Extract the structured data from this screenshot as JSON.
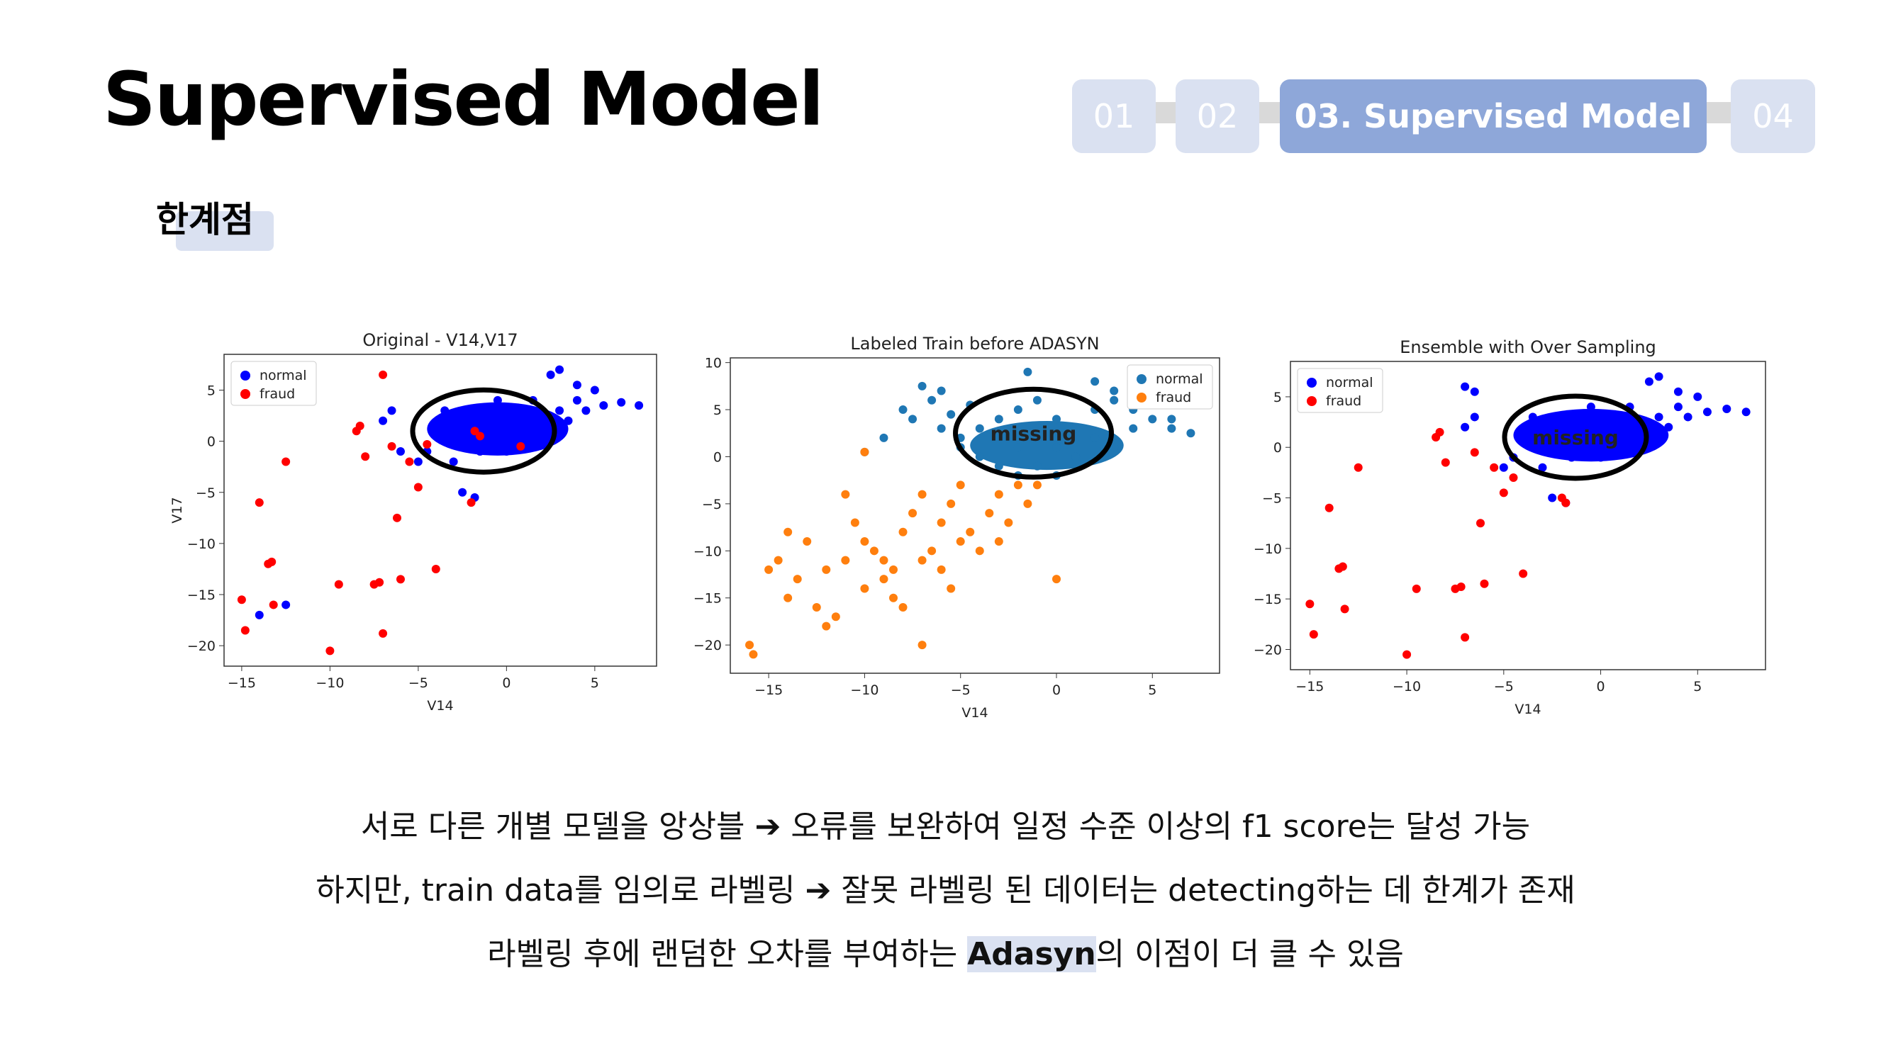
{
  "slide": {
    "title": "Supervised Model",
    "subtitle": "한계점"
  },
  "nav": {
    "items": [
      "01",
      "02",
      "03. Supervised Model",
      "04"
    ],
    "active_index": 2
  },
  "colors": {
    "nav_inactive": "#dae1f1",
    "nav_active": "#8ea7d9",
    "normal_blue": "#0000ff",
    "fraud_red": "#ff0000",
    "mpl_blue": "#1f77b4",
    "mpl_orange": "#ff7f0e"
  },
  "chart_data": [
    {
      "type": "scatter",
      "title": "Original - V14,V17",
      "xlabel": "V14",
      "ylabel": "V17",
      "xlim": [
        -16,
        8.5
      ],
      "ylim": [
        -22,
        8.5
      ],
      "xticks": [
        "−15",
        "−10",
        "−5",
        "0",
        "5"
      ],
      "xtick_values": [
        -15,
        -10,
        -5,
        0,
        5
      ],
      "yticks": [
        "−20",
        "−15",
        "−10",
        "−5",
        "0",
        "5"
      ],
      "ytick_values": [
        -20,
        -15,
        -10,
        -5,
        0,
        5
      ],
      "legend": "top-left",
      "annotation": "",
      "series": [
        {
          "name": "normal",
          "color": "#0000ff",
          "points": [
            [
              -2,
              1
            ],
            [
              -1,
              2
            ],
            [
              0,
              1.5
            ],
            [
              1,
              0
            ],
            [
              2,
              2
            ],
            [
              3,
              3
            ],
            [
              4,
              4
            ],
            [
              -3,
              -2
            ],
            [
              -2.5,
              0.5
            ],
            [
              0.5,
              1
            ],
            [
              1.5,
              -0.5
            ],
            [
              2.5,
              1
            ],
            [
              3.5,
              2
            ],
            [
              4.5,
              3
            ],
            [
              5.5,
              3.5
            ],
            [
              6.5,
              3.8
            ],
            [
              7.5,
              3.5
            ],
            [
              -4,
              1
            ],
            [
              -4.5,
              -1
            ],
            [
              -5,
              -2
            ],
            [
              -7,
              2
            ],
            [
              -6.5,
              3
            ],
            [
              -1.5,
              -1
            ],
            [
              -3.5,
              3
            ],
            [
              3,
              7
            ],
            [
              2.5,
              6.5
            ],
            [
              -2.5,
              -5
            ],
            [
              -1.8,
              -5.5
            ],
            [
              -14,
              -17
            ],
            [
              -12.5,
              -16
            ],
            [
              -6,
              -1
            ],
            [
              0,
              -1
            ],
            [
              1,
              1.5
            ],
            [
              -1,
              0
            ],
            [
              -2,
              2.5
            ],
            [
              0.2,
              3
            ],
            [
              -0.5,
              4
            ],
            [
              1.5,
              4
            ],
            [
              5,
              5
            ],
            [
              4,
              5.5
            ]
          ]
        },
        {
          "name": "fraud",
          "color": "#ff0000",
          "points": [
            [
              -15,
              -15.5
            ],
            [
              -14.8,
              -18.5
            ],
            [
              -14,
              -6
            ],
            [
              -13.5,
              -12
            ],
            [
              -13.3,
              -11.8
            ],
            [
              -13.2,
              -16
            ],
            [
              -12.5,
              -2
            ],
            [
              -10,
              -20.5
            ],
            [
              -9.5,
              -14
            ],
            [
              -8.5,
              1
            ],
            [
              -8.3,
              1.5
            ],
            [
              -8,
              -1.5
            ],
            [
              -7.5,
              -14
            ],
            [
              -7.2,
              -13.8
            ],
            [
              -7,
              -18.8
            ],
            [
              -7,
              6.5
            ],
            [
              -6.5,
              -0.5
            ],
            [
              -6.2,
              -7.5
            ],
            [
              -6,
              -13.5
            ],
            [
              -5.5,
              -2
            ],
            [
              -5,
              -4.5
            ],
            [
              -4.5,
              -0.3
            ],
            [
              -4,
              -12.5
            ],
            [
              -2,
              -6
            ],
            [
              -1.8,
              1
            ],
            [
              -1.5,
              0.5
            ],
            [
              0.8,
              -0.5
            ]
          ]
        }
      ]
    },
    {
      "type": "scatter",
      "title": "Labeled Train before ADASYN",
      "xlabel": "V14",
      "ylabel": "",
      "xlim": [
        -17,
        8.5
      ],
      "ylim": [
        -23,
        10.5
      ],
      "xticks": [
        "−15",
        "−10",
        "−5",
        "0",
        "5"
      ],
      "xtick_values": [
        -15,
        -10,
        -5,
        0,
        5
      ],
      "yticks": [
        "−20",
        "−15",
        "−10",
        "−5",
        "0",
        "5",
        "10"
      ],
      "ytick_values": [
        -20,
        -15,
        -10,
        -5,
        0,
        5,
        10
      ],
      "legend": "top-right",
      "annotation": "missing",
      "series": [
        {
          "name": "normal",
          "color": "#1f77b4",
          "points": [
            [
              -6,
              7
            ],
            [
              -6.5,
              6
            ],
            [
              -7,
              7.5
            ],
            [
              -8,
              5
            ],
            [
              -7.5,
              4
            ],
            [
              -6,
              3
            ],
            [
              -5,
              2
            ],
            [
              -4,
              3
            ],
            [
              -3,
              4
            ],
            [
              -2,
              5
            ],
            [
              -1,
              6
            ],
            [
              0,
              4
            ],
            [
              1,
              3
            ],
            [
              2,
              5
            ],
            [
              3,
              6
            ],
            [
              4,
              5
            ],
            [
              5,
              4
            ],
            [
              6,
              3
            ],
            [
              7,
              2.5
            ],
            [
              -4,
              0
            ],
            [
              -3,
              -1
            ],
            [
              -2,
              -2
            ],
            [
              -1,
              -1
            ],
            [
              0,
              -2
            ],
            [
              1,
              0
            ],
            [
              -1.5,
              9
            ],
            [
              2,
              8
            ],
            [
              3,
              7
            ],
            [
              -9,
              2
            ],
            [
              -10,
              0.5
            ],
            [
              -5,
              1
            ],
            [
              -2,
              1
            ],
            [
              0,
              1
            ],
            [
              2,
              2
            ],
            [
              4,
              3
            ],
            [
              6,
              4
            ],
            [
              -5.5,
              4.5
            ],
            [
              -4.5,
              5.5
            ],
            [
              1,
              2
            ],
            [
              3,
              1
            ]
          ]
        },
        {
          "name": "fraud",
          "color": "#ff7f0e",
          "points": [
            [
              -16,
              -20
            ],
            [
              -15.8,
              -21
            ],
            [
              -15,
              -12
            ],
            [
              -14.5,
              -11
            ],
            [
              -14,
              -8
            ],
            [
              -14,
              -15
            ],
            [
              -13.5,
              -13
            ],
            [
              -13,
              -9
            ],
            [
              -12.5,
              -16
            ],
            [
              -12,
              -12
            ],
            [
              -12,
              -18
            ],
            [
              -11.5,
              -17
            ],
            [
              -11,
              -11
            ],
            [
              -11,
              -4
            ],
            [
              -10.5,
              -7
            ],
            [
              -10,
              -14
            ],
            [
              -10,
              0.5
            ],
            [
              -10,
              -9
            ],
            [
              -9.5,
              -10
            ],
            [
              -9,
              -11
            ],
            [
              -9,
              -13
            ],
            [
              -8.5,
              -12
            ],
            [
              -8.5,
              -15
            ],
            [
              -8,
              -8
            ],
            [
              -8,
              -16
            ],
            [
              -7.5,
              -6
            ],
            [
              -7,
              -11
            ],
            [
              -7,
              -20
            ],
            [
              -7,
              -4
            ],
            [
              -6.5,
              -10
            ],
            [
              -6,
              -12
            ],
            [
              -6,
              -7
            ],
            [
              -5.5,
              -5
            ],
            [
              -5,
              -9
            ],
            [
              -5,
              -3
            ],
            [
              -4.5,
              -8
            ],
            [
              -4,
              -10
            ],
            [
              -3.5,
              -6
            ],
            [
              -3,
              -4
            ],
            [
              -2.5,
              -7
            ],
            [
              -2,
              -3
            ],
            [
              -1.5,
              -5
            ],
            [
              -1,
              -3
            ],
            [
              0,
              -13
            ],
            [
              -3,
              -9
            ],
            [
              -5.5,
              -14
            ]
          ]
        }
      ]
    },
    {
      "type": "scatter",
      "title": "Ensemble with Over Sampling",
      "xlabel": "V14",
      "ylabel": "",
      "xlim": [
        -16,
        8.5
      ],
      "ylim": [
        -22,
        8.5
      ],
      "xticks": [
        "−15",
        "−10",
        "−5",
        "0",
        "5"
      ],
      "xtick_values": [
        -15,
        -10,
        -5,
        0,
        5
      ],
      "yticks": [
        "−20",
        "−15",
        "−10",
        "−5",
        "0",
        "5"
      ],
      "ytick_values": [
        -20,
        -15,
        -10,
        -5,
        0,
        5
      ],
      "legend": "top-left",
      "annotation": "missing",
      "series": [
        {
          "name": "normal",
          "color": "#0000ff",
          "points": [
            [
              -2,
              1
            ],
            [
              -1,
              2
            ],
            [
              0,
              1.5
            ],
            [
              1,
              0
            ],
            [
              2,
              2
            ],
            [
              3,
              3
            ],
            [
              4,
              4
            ],
            [
              -3,
              -2
            ],
            [
              -2.5,
              0.5
            ],
            [
              0.5,
              1
            ],
            [
              1.5,
              -0.5
            ],
            [
              2.5,
              1
            ],
            [
              3.5,
              2
            ],
            [
              4.5,
              3
            ],
            [
              5.5,
              3.5
            ],
            [
              6.5,
              3.8
            ],
            [
              7.5,
              3.5
            ],
            [
              -4,
              1
            ],
            [
              -4.5,
              -1
            ],
            [
              -5,
              -2
            ],
            [
              -7,
              2
            ],
            [
              -6.5,
              3
            ],
            [
              -1.5,
              -1
            ],
            [
              -3.5,
              3
            ],
            [
              3,
              7
            ],
            [
              2.5,
              6.5
            ],
            [
              -2.5,
              -5
            ],
            [
              -1.8,
              -5.5
            ],
            [
              -7,
              6
            ],
            [
              -6.5,
              5.5
            ],
            [
              0,
              -1
            ],
            [
              1,
              1.5
            ],
            [
              -1,
              0
            ],
            [
              -2,
              2.5
            ],
            [
              0.2,
              3
            ],
            [
              -0.5,
              4
            ],
            [
              1.5,
              4
            ],
            [
              5,
              5
            ],
            [
              4,
              5.5
            ]
          ]
        },
        {
          "name": "fraud",
          "color": "#ff0000",
          "points": [
            [
              -15,
              -15.5
            ],
            [
              -14.8,
              -18.5
            ],
            [
              -14,
              -6
            ],
            [
              -13.5,
              -12
            ],
            [
              -13.3,
              -11.8
            ],
            [
              -13.2,
              -16
            ],
            [
              -12.5,
              -2
            ],
            [
              -10,
              -20.5
            ],
            [
              -9.5,
              -14
            ],
            [
              -8.5,
              1
            ],
            [
              -8.3,
              1.5
            ],
            [
              -8,
              -1.5
            ],
            [
              -7.5,
              -14
            ],
            [
              -7.2,
              -13.8
            ],
            [
              -7,
              -18.8
            ],
            [
              -6.5,
              -0.5
            ],
            [
              -6.2,
              -7.5
            ],
            [
              -6,
              -13.5
            ],
            [
              -5.5,
              -2
            ],
            [
              -5,
              -4.5
            ],
            [
              -4.5,
              -3
            ],
            [
              -4,
              -12.5
            ],
            [
              -2,
              -5
            ],
            [
              -1.8,
              -5.5
            ]
          ]
        }
      ]
    }
  ],
  "body": {
    "line1": {
      "a": "서로 다른 개별 모델을 앙상블",
      "arrow": "➔",
      "b": "오류를 보완하여 일정 수준 이상의 f1 score는 달성 가능"
    },
    "line2": {
      "a": "하지만, train data를 임의로 라벨링",
      "arrow": "➔",
      "b": "잘못 라벨링 된 데이터는 detecting하는 데 한계가 존재"
    },
    "line3": {
      "a": "라벨링 후에 랜덤한 오차를 부여하는",
      "bold": "Adasyn",
      "b": "의 이점이 더 클 수 있음"
    }
  }
}
